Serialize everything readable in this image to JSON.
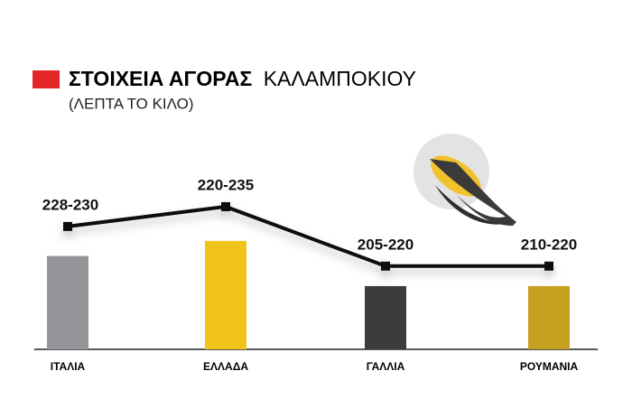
{
  "chart_data": {
    "type": "bar-line",
    "title": [
      "ΣΤΟΙΧΕΙΑ ΑΓΟΡΑΣ",
      "ΚΑΛΑΜΠΟΚΙΟΥ"
    ],
    "subtitle": "(ΛΕΠΤΑ ΤΟ ΚΙΛΟ)",
    "categories": [
      "ΙΤΑΛΙΑ",
      "ΕΛΛΑΔΑ",
      "ΓΑΛΛΙΑ",
      "ΡΟΥΜΑΝΙΑ"
    ],
    "low": [
      228,
      220,
      205,
      210
    ],
    "high": [
      230,
      235,
      220,
      220
    ],
    "value_labels": [
      "228-230",
      "220-235",
      "205-220",
      "210-220"
    ],
    "bar_colors": [
      "#939598",
      "#f0c419",
      "#3c3c3c",
      "#c6a020"
    ],
    "line_color": "#111111",
    "ylim": [
      199,
      240
    ]
  }
}
